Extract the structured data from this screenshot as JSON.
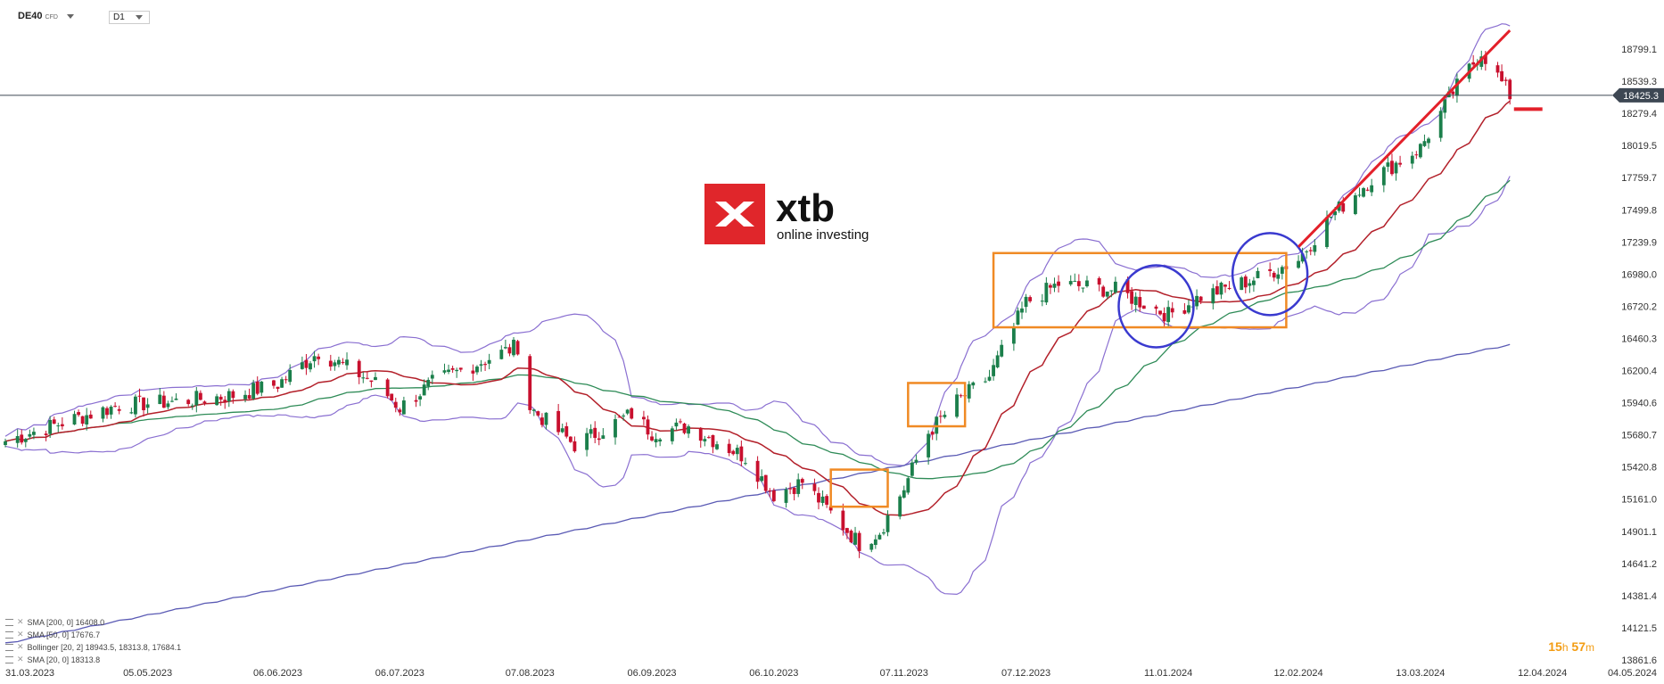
{
  "header": {
    "symbol": "DE40",
    "symbol_tag": "CFD",
    "timeframe": "D1"
  },
  "logo": {
    "brand": "xtb",
    "tagline": "online investing"
  },
  "indicators": [
    {
      "label": "SMA  [200,  0]  16408.0",
      "color": "#5a5ab4"
    },
    {
      "label": "SMA  [50,  0]  17676.7",
      "color": "#2e8b57"
    },
    {
      "label": "Bollinger  [20,  2]  18943.5,   18313.8,   17684.1",
      "color": "#8a6fd1"
    },
    {
      "label": "SMA  [20,  0]  18313.8",
      "color": "#b3202a"
    }
  ],
  "timer": {
    "hours": "15",
    "h_unit": "h",
    "minutes": "57",
    "m_unit": "m"
  },
  "colors": {
    "bull": "#1b7f4b",
    "bear": "#c8102e",
    "sma20": "#b3202a",
    "sma50": "#2e8b57",
    "sma200": "#5a5ab4",
    "bollinger": "#8a6fd1",
    "zone": "#f08a24",
    "circle": "#3a3acf",
    "trend": "#e3202a",
    "price_tag": "#3d4753"
  },
  "chart_data": {
    "type": "candlestick",
    "symbol": "DE40",
    "timeframe": "D1",
    "y_axis_ticks": [
      "18799.1",
      "18539.3",
      "18279.4",
      "18019.5",
      "17759.7",
      "17499.8",
      "17239.9",
      "16980.0",
      "16720.2",
      "16460.3",
      "16200.4",
      "15940.6",
      "15680.7",
      "15420.8",
      "15161.0",
      "14901.1",
      "14641.2",
      "14381.4",
      "14121.5",
      "13861.6"
    ],
    "x_axis_ticks": [
      "31.03.2023",
      "05.05.2023",
      "06.06.2023",
      "06.07.2023",
      "07.08.2023",
      "06.09.2023",
      "06.10.2023",
      "07.11.2023",
      "07.12.2023",
      "11.01.2024",
      "12.02.2024",
      "13.03.2024",
      "12.04.2024",
      "04.05.2024"
    ],
    "ylim": [
      13861.6,
      18799.1
    ],
    "current_price": "18425.3",
    "close_series": [
      [
        "31.03.2023",
        15630
      ],
      [
        "14.04.2023",
        15780
      ],
      [
        "28.04.2023",
        15920
      ],
      [
        "12.05.2023",
        15950
      ],
      [
        "26.05.2023",
        16000
      ],
      [
        "06.06.2023",
        16090
      ],
      [
        "16.06.2023",
        16350
      ],
      [
        "30.06.2023",
        16100
      ],
      [
        "06.07.2023",
        15900
      ],
      [
        "14.07.2023",
        16100
      ],
      [
        "28.07.2023",
        16300
      ],
      [
        "04.08.2023",
        16400
      ],
      [
        "07.08.2023",
        15900
      ],
      [
        "18.08.2023",
        15600
      ],
      [
        "01.09.2023",
        15850
      ],
      [
        "06.09.2023",
        15700
      ],
      [
        "15.09.2023",
        15750
      ],
      [
        "29.09.2023",
        15500
      ],
      [
        "06.10.2023",
        15200
      ],
      [
        "13.10.2023",
        15300
      ],
      [
        "27.10.2023",
        14800
      ],
      [
        "01.11.2023",
        14900
      ],
      [
        "07.11.2023",
        15250
      ],
      [
        "13.11.2023",
        15700
      ],
      [
        "20.11.2023",
        15950
      ],
      [
        "28.11.2023",
        16150
      ],
      [
        "07.12.2023",
        16750
      ],
      [
        "15.12.2023",
        16900
      ],
      [
        "29.12.2023",
        16850
      ],
      [
        "11.01.2024",
        16650
      ],
      [
        "19.01.2024",
        16800
      ],
      [
        "02.02.2024",
        16950
      ],
      [
        "12.02.2024",
        17100
      ],
      [
        "20.02.2024",
        17450
      ],
      [
        "01.03.2024",
        17750
      ],
      [
        "13.03.2024",
        18000
      ],
      [
        "21.03.2024",
        18450
      ],
      [
        "28.03.2024",
        18780
      ],
      [
        "04.04.2024",
        18425.3
      ]
    ],
    "series": [
      {
        "name": "SMA [20, 0]",
        "last": 18313.8
      },
      {
        "name": "SMA [50, 0]",
        "last": 17676.7
      },
      {
        "name": "Bollinger [20, 2]",
        "upper": 18943.5,
        "middle": 18313.8,
        "lower": 17684.1
      },
      {
        "name": "SMA [200, 0]",
        "last": 16408.0
      }
    ],
    "annotations": [
      {
        "type": "rectangle",
        "from": "20.10.2023",
        "to": "03.11.2023",
        "low": 15100,
        "high": 15400
      },
      {
        "type": "rectangle",
        "from": "08.11.2023",
        "to": "22.11.2023",
        "low": 15750,
        "high": 16100
      },
      {
        "type": "rectangle",
        "from": "29.11.2023",
        "to": "09.02.2024",
        "low": 16550,
        "high": 17150
      },
      {
        "type": "ellipse",
        "center": "08.01.2024",
        "price": 16720
      },
      {
        "type": "ellipse",
        "center": "05.02.2024",
        "price": 16980
      },
      {
        "type": "trendline",
        "from": "12.02.2024",
        "to": "04.04.2024",
        "start": 17200,
        "end": 18950
      },
      {
        "type": "hline",
        "price": 18313.8,
        "from": "05.04.2024",
        "to": "12.04.2024"
      }
    ]
  }
}
